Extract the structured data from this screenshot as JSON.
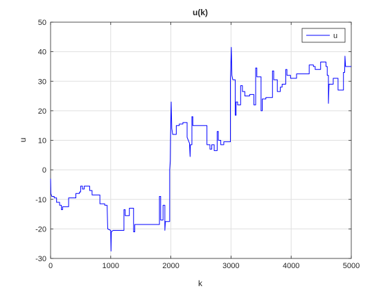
{
  "chart_data": {
    "type": "line",
    "title": "u(k)",
    "xlabel": "k",
    "ylabel": "u",
    "xlim": [
      0,
      5000
    ],
    "ylim": [
      -30,
      50
    ],
    "xticks": [
      0,
      1000,
      2000,
      3000,
      4000,
      5000
    ],
    "yticks": [
      -30,
      -20,
      -10,
      0,
      10,
      20,
      30,
      40,
      50
    ],
    "grid": true,
    "legend": {
      "position": "top-right",
      "entries": [
        "u"
      ]
    },
    "series": [
      {
        "name": "u",
        "color": "#0000ff",
        "points": [
          [
            0,
            -3
          ],
          [
            5,
            -8
          ],
          [
            20,
            -9
          ],
          [
            40,
            -9
          ],
          [
            60,
            -9
          ],
          [
            60,
            -9.5
          ],
          [
            100,
            -9.5
          ],
          [
            100,
            -11
          ],
          [
            150,
            -11
          ],
          [
            150,
            -12
          ],
          [
            180,
            -12
          ],
          [
            180,
            -13.5
          ],
          [
            200,
            -13.5
          ],
          [
            200,
            -12.5
          ],
          [
            300,
            -12.5
          ],
          [
            300,
            -9.5
          ],
          [
            420,
            -9.5
          ],
          [
            420,
            -8
          ],
          [
            480,
            -8
          ],
          [
            480,
            -7.5
          ],
          [
            500,
            -7.5
          ],
          [
            500,
            -5.5
          ],
          [
            530,
            -5.5
          ],
          [
            530,
            -6.5
          ],
          [
            560,
            -6.5
          ],
          [
            560,
            -5.5
          ],
          [
            650,
            -5.5
          ],
          [
            650,
            -7
          ],
          [
            690,
            -7
          ],
          [
            690,
            -8.5
          ],
          [
            820,
            -8.5
          ],
          [
            820,
            -11.5
          ],
          [
            900,
            -11.5
          ],
          [
            900,
            -12
          ],
          [
            940,
            -12
          ],
          [
            950,
            -20
          ],
          [
            1000,
            -20.5
          ],
          [
            1005,
            -27.5
          ],
          [
            1010,
            -21
          ],
          [
            1040,
            -20.5
          ],
          [
            1220,
            -20.5
          ],
          [
            1220,
            -13.5
          ],
          [
            1240,
            -13.5
          ],
          [
            1240,
            -15.5
          ],
          [
            1310,
            -15.5
          ],
          [
            1310,
            -13
          ],
          [
            1380,
            -13
          ],
          [
            1380,
            -21
          ],
          [
            1400,
            -21
          ],
          [
            1400,
            -18.5
          ],
          [
            1810,
            -18.5
          ],
          [
            1810,
            -9
          ],
          [
            1830,
            -9
          ],
          [
            1830,
            -17
          ],
          [
            1870,
            -17
          ],
          [
            1870,
            -12
          ],
          [
            1900,
            -12
          ],
          [
            1900,
            -20.5
          ],
          [
            1910,
            -17.5
          ],
          [
            1980,
            -17.5
          ],
          [
            1980,
            0
          ],
          [
            1990,
            3
          ],
          [
            1995,
            12
          ],
          [
            2005,
            23
          ],
          [
            2015,
            14
          ],
          [
            2030,
            12
          ],
          [
            2090,
            12
          ],
          [
            2090,
            15
          ],
          [
            2140,
            15
          ],
          [
            2140,
            15.5
          ],
          [
            2200,
            15.5
          ],
          [
            2200,
            16
          ],
          [
            2270,
            16
          ],
          [
            2270,
            11
          ],
          [
            2310,
            9
          ],
          [
            2320,
            4.5
          ],
          [
            2325,
            8.5
          ],
          [
            2350,
            8.5
          ],
          [
            2350,
            18
          ],
          [
            2365,
            18
          ],
          [
            2365,
            15
          ],
          [
            2600,
            15
          ],
          [
            2600,
            8.5
          ],
          [
            2650,
            8.5
          ],
          [
            2650,
            7
          ],
          [
            2680,
            7
          ],
          [
            2680,
            8.5
          ],
          [
            2720,
            8.5
          ],
          [
            2720,
            6.5
          ],
          [
            2770,
            6.5
          ],
          [
            2770,
            13
          ],
          [
            2790,
            13
          ],
          [
            2790,
            10
          ],
          [
            2830,
            10
          ],
          [
            2830,
            8.5
          ],
          [
            2880,
            8.5
          ],
          [
            2880,
            9.5
          ],
          [
            2990,
            9.5
          ],
          [
            2990,
            30
          ],
          [
            3005,
            41.5
          ],
          [
            3015,
            32
          ],
          [
            3030,
            30.5
          ],
          [
            3070,
            30.5
          ],
          [
            3070,
            18.5
          ],
          [
            3085,
            18.5
          ],
          [
            3085,
            23
          ],
          [
            3110,
            23
          ],
          [
            3110,
            22
          ],
          [
            3160,
            22
          ],
          [
            3160,
            28.5
          ],
          [
            3190,
            28.5
          ],
          [
            3190,
            26.5
          ],
          [
            3230,
            26.5
          ],
          [
            3230,
            25
          ],
          [
            3310,
            25
          ],
          [
            3310,
            25.5
          ],
          [
            3380,
            25.5
          ],
          [
            3380,
            22
          ],
          [
            3410,
            22
          ],
          [
            3410,
            34.5
          ],
          [
            3430,
            34.5
          ],
          [
            3430,
            31.5
          ],
          [
            3500,
            31.5
          ],
          [
            3500,
            20
          ],
          [
            3520,
            20
          ],
          [
            3520,
            24
          ],
          [
            3580,
            24
          ],
          [
            3580,
            24.5
          ],
          [
            3690,
            24.5
          ],
          [
            3690,
            33.5
          ],
          [
            3710,
            33.5
          ],
          [
            3710,
            30.5
          ],
          [
            3770,
            30.5
          ],
          [
            3770,
            26.5
          ],
          [
            3820,
            26.5
          ],
          [
            3820,
            28
          ],
          [
            3850,
            28
          ],
          [
            3850,
            29
          ],
          [
            3910,
            29
          ],
          [
            3910,
            34
          ],
          [
            3930,
            34
          ],
          [
            3930,
            32
          ],
          [
            3990,
            32
          ],
          [
            3990,
            31
          ],
          [
            4090,
            31
          ],
          [
            4090,
            32.5
          ],
          [
            4300,
            32.5
          ],
          [
            4300,
            35.5
          ],
          [
            4370,
            35.5
          ],
          [
            4370,
            35
          ],
          [
            4400,
            35
          ],
          [
            4400,
            34
          ],
          [
            4490,
            34
          ],
          [
            4490,
            36.5
          ],
          [
            4580,
            36.5
          ],
          [
            4580,
            35
          ],
          [
            4600,
            35
          ],
          [
            4600,
            32
          ],
          [
            4620,
            32
          ],
          [
            4620,
            22.5
          ],
          [
            4630,
            29
          ],
          [
            4700,
            29
          ],
          [
            4700,
            31
          ],
          [
            4780,
            31
          ],
          [
            4780,
            27
          ],
          [
            4870,
            27
          ],
          [
            4870,
            33
          ],
          [
            4890,
            33
          ],
          [
            4895,
            38.5
          ],
          [
            4905,
            35
          ],
          [
            5000,
            35
          ]
        ]
      }
    ]
  }
}
